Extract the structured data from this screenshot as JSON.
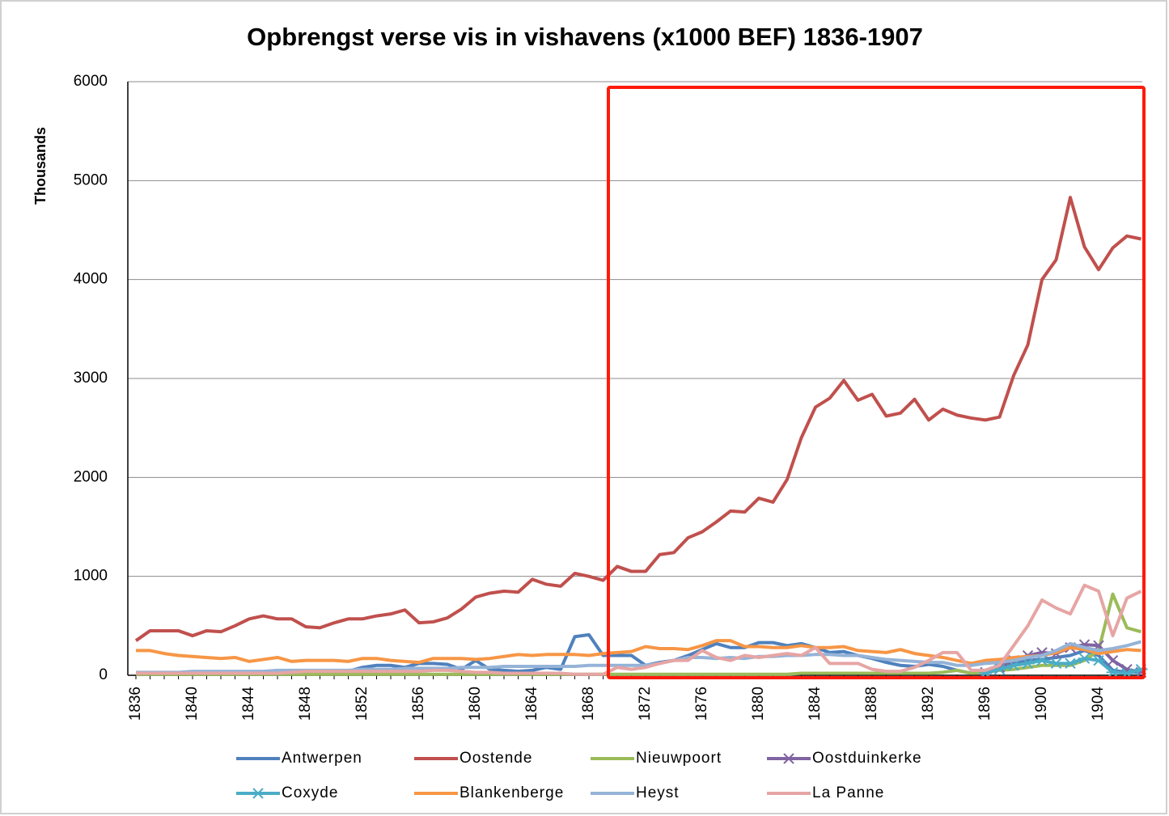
{
  "chart_data": {
    "type": "line",
    "title": "Opbrengst verse vis in vishavens (x1000 BEF) 1836-1907",
    "y_label": "Thousands",
    "categories": [
      "1836",
      null,
      null,
      null,
      "1840",
      null,
      null,
      null,
      "1844",
      null,
      null,
      null,
      "1848",
      null,
      null,
      null,
      "1852",
      null,
      null,
      null,
      "1856",
      null,
      null,
      null,
      "1860",
      null,
      null,
      null,
      "1864",
      null,
      null,
      null,
      "1868",
      null,
      null,
      null,
      "1872",
      null,
      null,
      null,
      "1876",
      null,
      null,
      null,
      "1880",
      null,
      null,
      null,
      "1884",
      null,
      null,
      null,
      "1888",
      null,
      null,
      null,
      "1892",
      null,
      null,
      null,
      "1896",
      null,
      null,
      null,
      "1900",
      null,
      null,
      null,
      "1904",
      null,
      null,
      null
    ],
    "ylim": [
      0,
      6000
    ],
    "yticks": [
      0,
      1000,
      2000,
      3000,
      4000,
      5000,
      6000
    ],
    "grid": true,
    "series": [
      {
        "name": "Antwerpen",
        "color": "#4f81bd",
        "values": [
          20,
          20,
          20,
          20,
          20,
          20,
          20,
          20,
          20,
          20,
          20,
          20,
          20,
          30,
          40,
          40,
          80,
          100,
          100,
          80,
          120,
          120,
          110,
          60,
          150,
          60,
          50,
          40,
          50,
          80,
          60,
          390,
          410,
          200,
          200,
          200,
          100,
          130,
          150,
          200,
          260,
          320,
          280,
          280,
          330,
          330,
          300,
          320,
          280,
          230,
          240,
          200,
          170,
          130,
          100,
          90,
          110,
          90,
          50,
          20,
          50,
          100,
          120,
          150,
          160,
          180,
          200,
          250,
          200,
          50,
          30,
          30
        ]
      },
      {
        "name": "Oostende",
        "color": "#c0504d",
        "values": [
          350,
          450,
          450,
          450,
          400,
          450,
          440,
          500,
          570,
          600,
          570,
          570,
          490,
          480,
          530,
          570,
          570,
          600,
          620,
          660,
          530,
          540,
          580,
          670,
          790,
          830,
          850,
          840,
          970,
          920,
          900,
          1030,
          1000,
          960,
          1100,
          1050,
          1050,
          1220,
          1240,
          1390,
          1450,
          1550,
          1660,
          1650,
          1790,
          1750,
          1980,
          2400,
          2710,
          2800,
          2980,
          2780,
          2840,
          2620,
          2650,
          2790,
          2580,
          2690,
          2630,
          2600,
          2580,
          2610,
          3030,
          3340,
          4000,
          4200,
          4830,
          4330,
          4100,
          4320,
          4440,
          4410
        ]
      },
      {
        "name": "Nieuwpoort",
        "color": "#9bbb59",
        "values": [
          10,
          10,
          10,
          10,
          10,
          10,
          10,
          10,
          10,
          10,
          10,
          10,
          10,
          10,
          10,
          10,
          10,
          10,
          10,
          10,
          10,
          10,
          10,
          10,
          10,
          10,
          10,
          10,
          10,
          10,
          10,
          10,
          10,
          10,
          10,
          10,
          10,
          10,
          10,
          10,
          10,
          10,
          10,
          10,
          10,
          10,
          10,
          20,
          20,
          20,
          20,
          20,
          20,
          20,
          20,
          20,
          20,
          30,
          50,
          20,
          30,
          50,
          60,
          80,
          100,
          100,
          100,
          150,
          250,
          820,
          480,
          440
        ]
      },
      {
        "name": "Oostduinkerke",
        "color": "#8064a2",
        "marker": "x",
        "values": [
          null,
          null,
          null,
          null,
          null,
          null,
          null,
          null,
          null,
          null,
          null,
          null,
          null,
          null,
          null,
          null,
          null,
          null,
          null,
          null,
          null,
          null,
          null,
          null,
          null,
          null,
          null,
          null,
          null,
          null,
          null,
          null,
          null,
          null,
          null,
          null,
          null,
          null,
          null,
          null,
          null,
          null,
          null,
          null,
          null,
          null,
          null,
          null,
          null,
          null,
          null,
          null,
          null,
          null,
          null,
          null,
          null,
          null,
          null,
          null,
          30,
          80,
          150,
          200,
          230,
          220,
          280,
          310,
          300,
          150,
          60,
          30
        ]
      },
      {
        "name": "Coxyde",
        "color": "#4bacc6",
        "marker": "asterisk",
        "values": [
          null,
          null,
          null,
          null,
          null,
          null,
          null,
          null,
          null,
          null,
          null,
          null,
          null,
          null,
          null,
          null,
          null,
          null,
          null,
          null,
          null,
          null,
          null,
          null,
          null,
          null,
          null,
          null,
          null,
          null,
          null,
          null,
          null,
          null,
          null,
          null,
          null,
          null,
          null,
          null,
          null,
          null,
          null,
          null,
          null,
          null,
          null,
          null,
          null,
          null,
          null,
          null,
          null,
          null,
          null,
          null,
          null,
          null,
          null,
          null,
          20,
          60,
          100,
          120,
          150,
          120,
          120,
          170,
          150,
          30,
          20,
          60
        ]
      },
      {
        "name": "Blankenberge",
        "color": "#f79646",
        "values": [
          250,
          250,
          220,
          200,
          190,
          180,
          170,
          180,
          140,
          160,
          180,
          140,
          150,
          150,
          150,
          140,
          170,
          170,
          150,
          140,
          130,
          170,
          170,
          170,
          160,
          170,
          190,
          210,
          200,
          210,
          210,
          210,
          200,
          220,
          230,
          240,
          290,
          270,
          270,
          260,
          300,
          350,
          350,
          290,
          290,
          280,
          280,
          300,
          280,
          280,
          290,
          250,
          240,
          230,
          260,
          220,
          200,
          180,
          150,
          120,
          150,
          160,
          180,
          190,
          200,
          230,
          280,
          260,
          220,
          240,
          260,
          250
        ]
      },
      {
        "name": "Heyst",
        "color": "#95b3d7",
        "values": [
          30,
          30,
          30,
          30,
          40,
          40,
          40,
          40,
          40,
          40,
          50,
          50,
          50,
          50,
          50,
          50,
          60,
          60,
          60,
          70,
          70,
          70,
          70,
          80,
          80,
          80,
          90,
          90,
          90,
          90,
          90,
          90,
          100,
          100,
          100,
          100,
          100,
          120,
          150,
          180,
          180,
          170,
          180,
          170,
          190,
          190,
          200,
          200,
          210,
          210,
          200,
          200,
          180,
          160,
          150,
          140,
          130,
          130,
          100,
          100,
          120,
          130,
          150,
          180,
          200,
          250,
          320,
          280,
          250,
          270,
          300,
          340
        ]
      },
      {
        "name": "La Panne",
        "color": "#e6a5a4",
        "values": [
          20,
          20,
          20,
          20,
          20,
          20,
          20,
          20,
          20,
          20,
          20,
          30,
          40,
          40,
          40,
          40,
          40,
          40,
          40,
          40,
          40,
          50,
          50,
          40,
          30,
          30,
          20,
          20,
          20,
          20,
          20,
          10,
          10,
          10,
          80,
          60,
          80,
          120,
          150,
          150,
          250,
          180,
          150,
          200,
          180,
          200,
          220,
          200,
          280,
          120,
          120,
          120,
          60,
          40,
          40,
          80,
          150,
          230,
          230,
          50,
          50,
          100,
          300,
          500,
          760,
          680,
          620,
          910,
          850,
          400,
          780,
          850
        ]
      }
    ]
  }
}
